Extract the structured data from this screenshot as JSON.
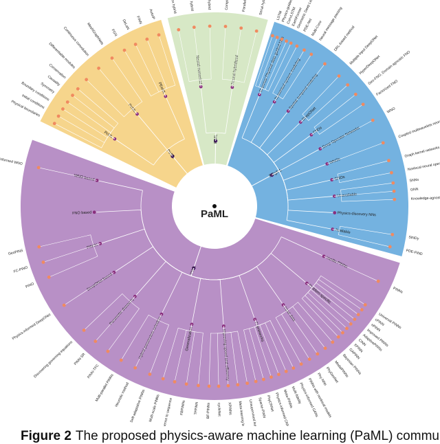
{
  "root": {
    "label": "PaML"
  },
  "caption": {
    "prefix": "Figure 2",
    "text": "The proposed physics-aware machine learning (PaML) community"
  },
  "colors": {
    "yellow": "#f6d58c",
    "green": "#d7e8c6",
    "blue": "#74b2e0",
    "purple": "#b890c6",
    "leaf": "#f08a60",
    "inner": "#8a2f7e",
    "core": "#4a1a6e"
  },
  "sectors": [
    {
      "id": "pirl",
      "color": "yellow",
      "start": 206,
      "end": 254,
      "label": "PirML",
      "node_color": "core",
      "subs": [
        {
          "label": "PcML",
          "leaves": [
            "Physical boundaries",
            "Initial conditions",
            "Boundary conditions",
            "Symmetry",
            "Causality",
            "Conservation"
          ]
        },
        {
          "label": "PeML",
          "leaves": [
            "Differentiable modules",
            "Continuous convolution",
            "MeshGraphNets"
          ]
        },
        {
          "label": "PEeML",
          "leaves": [
            "FGN",
            "DeLaN",
            "FINN",
            "AutoIP"
          ]
        }
      ]
    },
    {
      "id": "pirl2",
      "color": "green",
      "start": 256,
      "end": 286,
      "label": "PiML",
      "node_color": "core",
      "subs": [
        {
          "label": "Neural-numerical",
          "leaves": [
            "Complex hybrid",
            "Parallel hybrid",
            "Serial hybrid"
          ]
        },
        {
          "label": "Neural-hybridized",
          "leaves": [
            "Complex hybrid",
            "Parallel hybrid",
            "Serial hybrid"
          ]
        }
      ]
    },
    {
      "id": "pigml",
      "color": "blue",
      "start": 288,
      "end": 375,
      "label": "PDgML",
      "node_color": "core",
      "subs": [
        {
          "label": "Classical Physical data-guided NNs",
          "leaves": [
            "LSTM",
            "Physics-guided LSTM",
            "ConvLSTM",
            "EarthFormer",
            "Geometric Deep Learning"
          ]
        },
        {
          "label": "Dynamical system modeling",
          "leaves": [
            "PDE-Net",
            "Multi-Conv",
            "Neural message passing"
          ]
        },
        {
          "label": "Spatial-temporal modeling",
          "leaves": [
            "DRL-based method"
          ]
        },
        {
          "label": "DeepONet",
          "leaves": [
            "Multiple input DeepONet",
            "HyperDeepONet"
          ]
        },
        {
          "label": "FNOs",
          "leaves": [
            "Geo-FNO, Domain agnostic FNO",
            "Factorized FNO"
          ]
        },
        {
          "label": "Deep Operator Networks",
          "leaves": [
            "WNO"
          ]
        },
        {
          "label": "WNOs",
          "leaves": [
            "Coupled multiwavelets neural operator"
          ]
        },
        {
          "label": "GNOs",
          "leaves": [
            "Graph kernel networks",
            "Nonlocal neural operator"
          ]
        },
        {
          "label": "Unavailable",
          "leaves": [
            "SNNs",
            "GNN",
            "Knowledge-agnostic discovery"
          ]
        },
        {
          "label": "Physics-discovery NNs",
          "leaves": []
        },
        {
          "label": "Available",
          "leaves": [
            "SINDy",
            "PDE-FIND"
          ]
        }
      ]
    },
    {
      "id": "pinn",
      "color": "purple",
      "start": 17,
      "end": 200,
      "label": "PiML",
      "node_color": "core",
      "subs": [
        {
          "label": "Vanilla PINNs",
          "leaves": [
            "PINNs"
          ]
        },
        {
          "label": "Problem-specific",
          "leaves": [
            "Universal PINNs",
            "cPINN",
            "nPINN",
            "Improved PINNs",
            "AdaptivePINNs",
            "CINN",
            "XPINN",
            "GAPINN"
          ]
        },
        {
          "label": "Input data",
          "leaves": [
            "Bayesian PINNs",
            "ModalPINNs",
            "PhyGeoNet",
            "Phy-NNs",
            "PINNs with nonlocal models"
          ]
        },
        {
          "label": "Frameworks",
          "leaves": [
            "Physics-informed GANs",
            "Multi-fidelity",
            "Meta-PINNs",
            "Physics-informed CNNs",
            "PhyCRNet",
            "Sparse-PINN"
          ]
        },
        {
          "label": "Improving speed and efficiency",
          "leaves": [
            "Unsupervised learning",
            "Meta-learning based PINNs",
            "XPINNs",
            "cycleNet",
            "BF-PINNs"
          ]
        },
        {
          "label": "Generalization",
          "leaves": [
            "TFPINN",
            "FBPINNs",
            "Curriculum & Sequence to sequence",
            "Multi-scale PINNs"
          ]
        },
        {
          "label": "Hybrid parameters selection",
          "leaves": [
            "Self-adaptative PINNs",
            "Heuristic method",
            "Multi-parallel PINNs"
          ]
        },
        {
          "label": "Parameter discovery",
          "leaves": [
            "PINN-TFC",
            "PINN-SR",
            "Discovering governing equations"
          ]
        },
        {
          "label": "DeepONet based",
          "leaves": [
            "Physics-informed DeepONet"
          ]
        },
        {
          "label": "PINOs",
          "leaves": [
            "PINO",
            "FC-PINO",
            "GeoPINS"
          ]
        },
        {
          "label": "FNO based",
          "leaves": []
        },
        {
          "label": "WNO based",
          "leaves": [
            "Physics-informed WNO"
          ]
        }
      ]
    }
  ]
}
